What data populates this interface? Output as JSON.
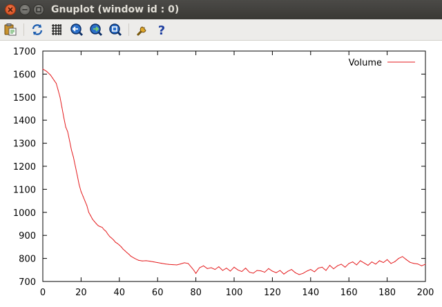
{
  "window": {
    "title": "Gnuplot (window id : 0)"
  },
  "toolbar": {
    "buttons": [
      {
        "name": "copy-clipboard-icon",
        "icon": "clipboard"
      },
      {
        "name": "replot-icon",
        "icon": "refresh"
      },
      {
        "name": "grid-icon",
        "icon": "grid"
      },
      {
        "name": "previous-zoom-icon",
        "icon": "zoom-back"
      },
      {
        "name": "next-zoom-icon",
        "icon": "zoom-forward"
      },
      {
        "name": "autoscale-icon",
        "icon": "zoom-fit"
      },
      {
        "name": "config-icon",
        "icon": "wrench"
      },
      {
        "name": "help-icon",
        "icon": "question"
      }
    ]
  },
  "colors": {
    "series": "#e41a1c"
  },
  "chart_data": {
    "type": "line",
    "title": "",
    "xlabel": "",
    "ylabel": "",
    "xlim": [
      0,
      200
    ],
    "ylim": [
      700,
      1700
    ],
    "xticks": [
      "0",
      "20",
      "40",
      "60",
      "80",
      "100",
      "120",
      "140",
      "160",
      "180",
      "200"
    ],
    "yticks": [
      "700",
      "800",
      "900",
      "1000",
      "1100",
      "1200",
      "1300",
      "1400",
      "1500",
      "1600",
      "1700"
    ],
    "grid": false,
    "legend_position": "top-right",
    "series": [
      {
        "name": "Volume",
        "x": [
          0,
          2,
          4,
          6,
          7,
          8,
          9,
          10,
          11,
          12,
          13,
          14,
          15,
          16,
          17,
          18,
          19,
          20,
          21,
          22,
          23,
          24,
          25,
          26,
          27,
          28,
          29,
          30,
          31,
          32,
          33,
          34,
          35,
          36,
          37,
          38,
          39,
          40,
          41,
          42,
          43,
          44,
          45,
          46,
          48,
          50,
          52,
          54,
          56,
          58,
          60,
          62,
          64,
          66,
          68,
          70,
          72,
          74,
          76,
          78,
          79,
          80,
          82,
          84,
          86,
          88,
          90,
          92,
          94,
          96,
          98,
          100,
          102,
          104,
          106,
          108,
          110,
          112,
          114,
          116,
          118,
          120,
          122,
          124,
          126,
          128,
          130,
          132,
          134,
          136,
          138,
          140,
          142,
          144,
          146,
          148,
          150,
          152,
          154,
          156,
          158,
          160,
          162,
          164,
          166,
          168,
          170,
          172,
          174,
          176,
          178,
          180,
          182,
          184,
          186,
          188,
          190,
          192,
          194,
          196,
          198,
          200
        ],
        "values": [
          1622,
          1612,
          1596,
          1572,
          1560,
          1530,
          1500,
          1455,
          1410,
          1370,
          1350,
          1310,
          1270,
          1240,
          1200,
          1160,
          1120,
          1090,
          1070,
          1050,
          1030,
          1000,
          985,
          970,
          960,
          950,
          942,
          938,
          935,
          925,
          918,
          905,
          895,
          888,
          880,
          870,
          865,
          858,
          850,
          840,
          833,
          825,
          818,
          810,
          800,
          792,
          789,
          790,
          788,
          785,
          782,
          779,
          776,
          774,
          773,
          772,
          776,
          781,
          778,
          758,
          748,
          735,
          760,
          768,
          756,
          760,
          752,
          764,
          748,
          758,
          745,
          762,
          750,
          743,
          758,
          740,
          736,
          748,
          746,
          740,
          756,
          745,
          738,
          748,
          732,
          744,
          752,
          738,
          730,
          735,
          745,
          752,
          742,
          758,
          762,
          748,
          770,
          755,
          768,
          775,
          762,
          778,
          785,
          772,
          790,
          780,
          770,
          785,
          775,
          790,
          782,
          795,
          778,
          786,
          800,
          808,
          795,
          783,
          778,
          776,
          768,
          775
        ]
      }
    ]
  }
}
